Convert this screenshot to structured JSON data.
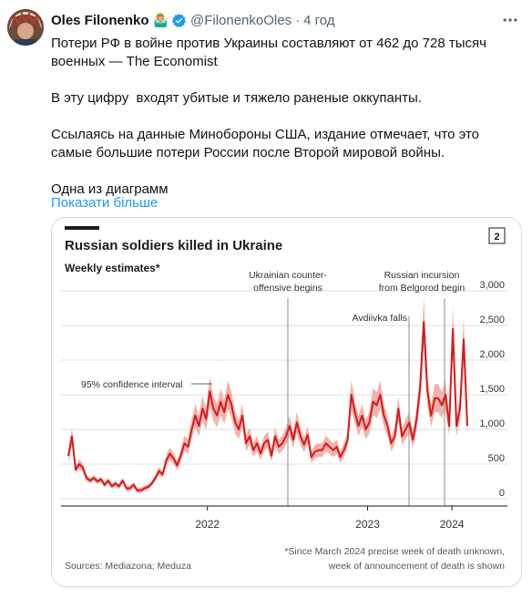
{
  "tweet": {
    "author_name": "Oles Filonenko",
    "author_emoji": "🤷🏼‍♂️",
    "handle": "@FilonenkoOles",
    "separator": "·",
    "time": "4 год",
    "more_icon": "more-horizontal-icon",
    "verified_icon": "verified-badge-icon",
    "verified_color": "#1d9bf0",
    "text_lines": [
      "Потери РФ в войне против Украины составляют от 462 до 728 тысяч военных — The Economist",
      "",
      "В эту цифру  входят убитые и тяжело раненые оккупанты.",
      "",
      "Ссылаясь на данные Минобороны США, издание отмечает, что это самые большие потери России после Второй мировой войны.",
      "",
      "Одна из диаграмм"
    ],
    "show_more": "Показати більше",
    "link_color": "#1d9bf0"
  },
  "chart_data": {
    "type": "line",
    "title": "Russian soldiers killed in Ukraine",
    "subtitle": "Weekly estimates*",
    "page_badge": "2",
    "ylim": [
      0,
      3000
    ],
    "yticks": [
      "3,000",
      "2,500",
      "2,000",
      "1,500",
      "1,000",
      "500",
      "0"
    ],
    "ytick_values": [
      3000,
      2500,
      2000,
      1500,
      1000,
      500,
      0
    ],
    "xticks": [
      "2022",
      "2023",
      "2024"
    ],
    "xtick_positions": [
      0.33,
      0.71,
      0.91
    ],
    "annotations": {
      "ci": "95% confidence interval",
      "counter_offensive_1": "Ukrainian counter-",
      "counter_offensive_2": "offensive begins",
      "avdiivka": "Avdiivka falls",
      "belgorod_1": "Russian incursion",
      "belgorod_2": "from Belgorod begin"
    },
    "source": "Sources: Mediazona; Meduza",
    "footnote_1": "*Since March 2024 precise week of death unknown,",
    "footnote_2": "week of announcement of death is shown",
    "line_color": "#d7191c",
    "band_color": "#f2b3ab",
    "series": [
      {
        "values": [
          620,
          900,
          420,
          500,
          450,
          300,
          260,
          300,
          250,
          280,
          200,
          260,
          180,
          220,
          180,
          260,
          150,
          150,
          200,
          120,
          120,
          150,
          170,
          220,
          300,
          400,
          350,
          550,
          650,
          580,
          480,
          620,
          800,
          750,
          1000,
          1200,
          1050,
          1300,
          1150,
          1550,
          1300,
          1200,
          1400,
          1250,
          1500,
          1350,
          1100,
          1000,
          1200,
          800,
          900,
          700,
          800,
          650,
          800,
          850,
          620,
          900,
          750,
          800,
          900,
          1050,
          850,
          1100,
          900,
          780,
          920,
          600,
          680,
          700,
          700,
          800,
          750,
          700,
          750,
          600,
          700,
          850,
          1500,
          1250,
          1050,
          1200,
          1000,
          1100,
          1400,
          1350,
          1500,
          1200,
          1050,
          800,
          900,
          1300,
          900,
          1000,
          1100,
          850,
          1150,
          1600,
          2550,
          1550,
          1200,
          1450,
          1450,
          1350,
          1500,
          1050,
          2450,
          1050,
          1300,
          2300,
          1050
        ]
      }
    ]
  }
}
